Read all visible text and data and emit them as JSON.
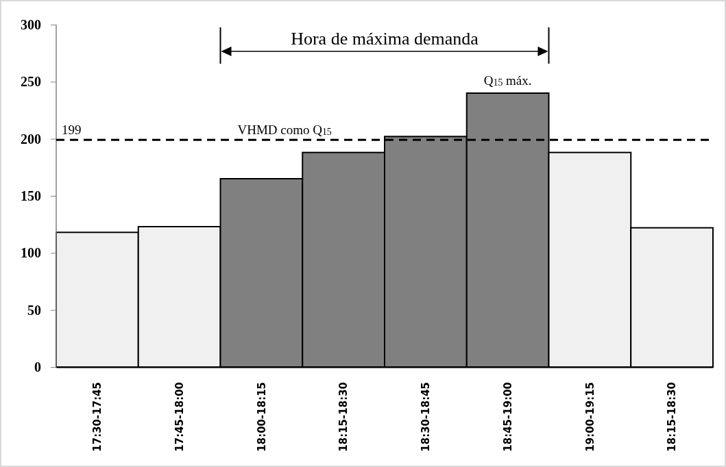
{
  "chart_data": {
    "type": "bar",
    "categories": [
      "17:30-17:45",
      "17:45-18:00",
      "18:00-18:15",
      "18:15-18:30",
      "18:30-18:45",
      "18:45-19:00",
      "19:00-19:15",
      "18:15-18:30"
    ],
    "values": [
      118,
      123,
      165,
      188,
      202,
      240,
      188,
      122
    ],
    "colors": [
      "#f0f0f0",
      "#f0f0f0",
      "#808080",
      "#808080",
      "#808080",
      "#808080",
      "#f0f0f0",
      "#f0f0f0"
    ],
    "ylim": [
      0,
      300
    ],
    "yticks": [
      0,
      50,
      100,
      150,
      200,
      250,
      300
    ],
    "ref_lines": [
      {
        "axis": "y",
        "value": 199,
        "label": "VHMD como Q$_{15}$",
        "line_style": "dashed",
        "color": "#000000"
      }
    ],
    "annotations": [
      "Hora de máxima demanda",
      {
        "text": "199",
        "y": 199
      },
      {
        "text": "Q$_{15}$ máx.",
        "x": "18:45-19:00",
        "y": 240
      }
    ]
  }
}
